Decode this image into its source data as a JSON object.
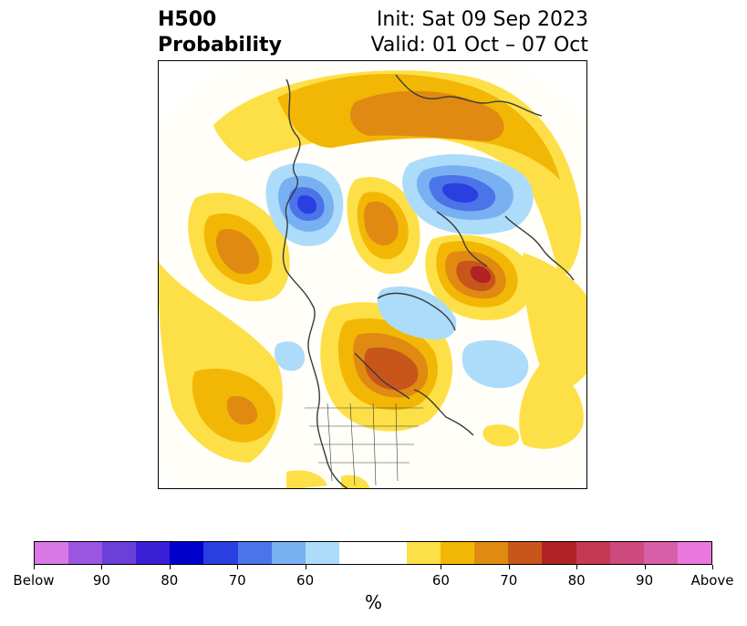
{
  "title": {
    "left_line1": "H500",
    "left_line2": "Probability",
    "right_line1": "Init: Sat 09 Sep 2023",
    "right_line2": "Valid: 01 Oct – 07 Oct"
  },
  "colorbar": {
    "unit_label": "%",
    "below_colors": [
      "#d978e6",
      "#9b55e3",
      "#6b3fd8",
      "#3a1fd6",
      "#0000cc",
      "#2a3fe0",
      "#4b74e8",
      "#79b0f2",
      "#acdcfa"
    ],
    "neutral_color": "#ffffff",
    "above_colors": [
      "#fde047",
      "#f2b705",
      "#e08a12",
      "#c8561b",
      "#b02224",
      "#c33a52",
      "#cc4a7e",
      "#d85ea8",
      "#e878dc"
    ],
    "tick_labels": [
      "Below",
      "90",
      "80",
      "70",
      "60",
      "60",
      "70",
      "80",
      "90",
      "Above"
    ]
  },
  "map": {
    "colors": {
      "light_yellow": "#fde047",
      "yellow": "#f2b705",
      "orange": "#e08a12",
      "dark_orange": "#c8561b",
      "red": "#b02224",
      "light_blue": "#acdcfa",
      "medium_blue": "#79b0f2",
      "blue": "#4b74e8",
      "dark_blue": "#2a3fe0",
      "coastline": "#3a3a3a"
    }
  }
}
